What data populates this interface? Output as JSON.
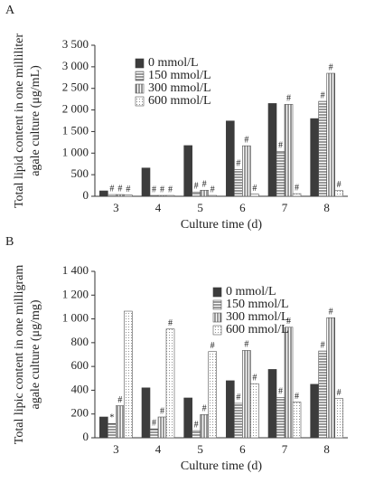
{
  "chart_data": [
    {
      "type": "bar",
      "panel": "A",
      "ylabel": [
        "Total lipid content in one milliliter",
        "agale culture (μg/mL)"
      ],
      "xlabel": "Culture time (d)",
      "categories": [
        "3",
        "4",
        "5",
        "6",
        "7",
        "8"
      ],
      "ylim": [
        0,
        3500
      ],
      "yticks": [
        0,
        500,
        {
          "value": 1000,
          "label": "1 000"
        },
        {
          "value": 1500,
          "label": "1 500"
        },
        {
          "value": 2000,
          "label": "2 000"
        },
        {
          "value": 2500,
          "label": "2 500"
        },
        {
          "value": 3000,
          "label": "3 000"
        },
        {
          "value": 3500,
          "label": "3 500"
        }
      ],
      "series": [
        {
          "name": "0 mmol/L",
          "color": "#3c3c3c",
          "hatch": "solid",
          "values": [
            125,
            655,
            1175,
            1745,
            2150,
            1800
          ],
          "markers": [
            null,
            null,
            null,
            null,
            null,
            null
          ]
        },
        {
          "name": "150 mmol/L",
          "color": "#555555",
          "hatch": "horizontal",
          "values": [
            40,
            20,
            100,
            620,
            1040,
            2200
          ],
          "markers": [
            "#",
            "#",
            "#",
            "#",
            "#",
            "#"
          ]
        },
        {
          "name": "300 mmol/L",
          "color": "#555555",
          "hatch": "vertical",
          "values": [
            40,
            20,
            140,
            1170,
            2130,
            2850
          ],
          "markers": [
            "#",
            "#",
            "#",
            "#",
            "#",
            "#"
          ]
        },
        {
          "name": "600 mmol/L",
          "color": "#555555",
          "hatch": "dots",
          "values": [
            30,
            20,
            20,
            50,
            60,
            130
          ],
          "markers": [
            "#",
            "#",
            "#",
            "#",
            "#",
            "#"
          ]
        }
      ]
    },
    {
      "type": "bar",
      "panel": "B",
      "ylabel": [
        "Total lipic content in one milligram",
        "agale culture (μg/mg)"
      ],
      "xlabel": "Culture time (d)",
      "categories": [
        "3",
        "4",
        "5",
        "6",
        "7",
        "8"
      ],
      "ylim": [
        0,
        1400
      ],
      "yticks": [
        0,
        200,
        400,
        600,
        800,
        {
          "value": 1000,
          "label": "1 000"
        },
        {
          "value": 1200,
          "label": "1 200"
        },
        {
          "value": 1400,
          "label": "1 400"
        }
      ],
      "series": [
        {
          "name": "0 mmol/L",
          "color": "#3c3c3c",
          "hatch": "solid",
          "values": [
            175,
            420,
            335,
            480,
            575,
            450
          ],
          "markers": [
            null,
            null,
            null,
            null,
            null,
            null
          ]
        },
        {
          "name": "150 mmol/L",
          "color": "#555555",
          "hatch": "horizontal",
          "values": [
            120,
            75,
            60,
            290,
            340,
            730
          ],
          "markers": [
            "*",
            "#",
            "#",
            "#",
            "#",
            "#"
          ]
        },
        {
          "name": "300 mmol/L",
          "color": "#555555",
          "hatch": "vertical",
          "values": [
            270,
            175,
            195,
            735,
            930,
            1010
          ],
          "markers": [
            "#",
            "#",
            "#",
            "#",
            "#",
            "#"
          ]
        },
        {
          "name": "600 mmol/L",
          "color": "#555555",
          "hatch": "dots",
          "values": [
            1065,
            915,
            725,
            455,
            300,
            330
          ],
          "markers": [
            null,
            "#",
            "#",
            "#",
            "#",
            "#"
          ]
        }
      ]
    }
  ]
}
